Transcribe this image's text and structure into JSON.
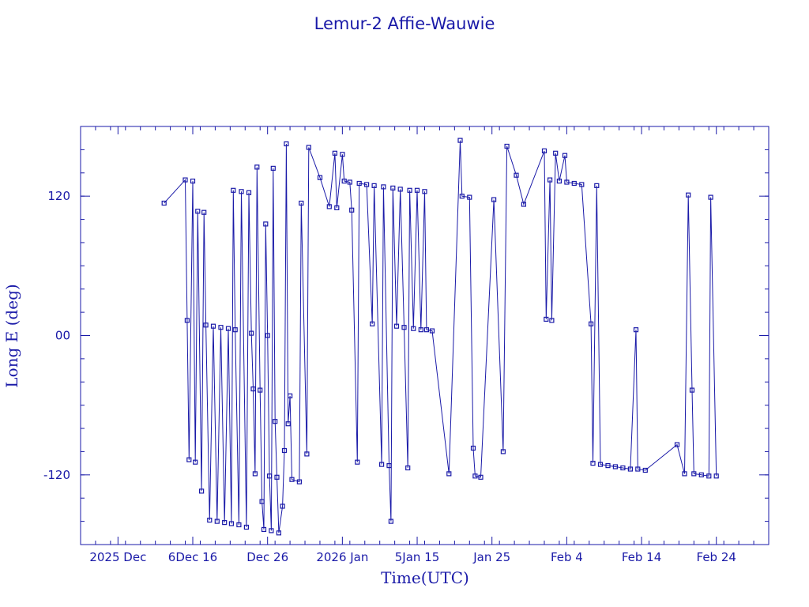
{
  "chart_data": {
    "type": "line",
    "title": "Lemur-2 Affie-Wauwie",
    "xlabel": "Time(UTC)",
    "ylabel": "Long E (deg)",
    "x_is_date": true,
    "xlim": [
      "2025-11-26",
      "2026-02-26"
    ],
    "ylim": [
      -180,
      180
    ],
    "x_tick_labels": [
      "2025 Dec",
      "6Dec 16",
      "Dec 26",
      "2026 Jan",
      "5Jan 15",
      "Jan 25",
      "Feb  4",
      "Feb 14",
      "Feb 24"
    ],
    "y_tick_labels": [
      "-120",
      "00",
      "120"
    ],
    "y_ticks": [
      -120,
      0,
      120
    ],
    "x_ticks": [
      "2025-12-01",
      "2025-12-11",
      "2025-12-21",
      "2025-12-31",
      "2026-01-10",
      "2026-01-20",
      "2026-01-30",
      "2026-02-09",
      "2026-02-19"
    ],
    "x_minor_tick_days": 2,
    "y_minor_tick_step": 20,
    "grid": false,
    "legend": "none",
    "color": "#1a1aa8",
    "marker": "square",
    "series": [
      {
        "points": [
          [
            "2025-12-07 04:00",
            114
          ],
          [
            "2025-12-10 00:00",
            134
          ],
          [
            "2025-12-10 06:00",
            13
          ],
          [
            "2025-12-10 12:00",
            -107
          ],
          [
            "2025-12-11 00:00",
            133
          ],
          [
            "2025-12-11 08:00",
            -109
          ],
          [
            "2025-12-11 16:00",
            107
          ],
          [
            "2025-12-12 04:00",
            -134
          ],
          [
            "2025-12-12 12:00",
            106
          ],
          [
            "2025-12-12 18:00",
            9
          ],
          [
            "2025-12-13 06:00",
            -159
          ],
          [
            "2025-12-13 18:00",
            8
          ],
          [
            "2025-12-14 06:00",
            -160
          ],
          [
            "2025-12-14 18:00",
            7
          ],
          [
            "2025-12-15 06:00",
            -161
          ],
          [
            "2025-12-15 18:00",
            6
          ],
          [
            "2025-12-16 04:00",
            -162
          ],
          [
            "2025-12-16 10:00",
            125
          ],
          [
            "2025-12-16 16:00",
            5
          ],
          [
            "2025-12-17 04:00",
            -163
          ],
          [
            "2025-12-17 12:00",
            124
          ],
          [
            "2025-12-18 04:00",
            -165
          ],
          [
            "2025-12-18 12:00",
            123
          ],
          [
            "2025-12-18 20:00",
            2
          ],
          [
            "2025-12-19 02:00",
            -46
          ],
          [
            "2025-12-19 08:00",
            -119
          ],
          [
            "2025-12-19 14:00",
            145
          ],
          [
            "2025-12-20 00:00",
            -47
          ],
          [
            "2025-12-20 06:00",
            -143
          ],
          [
            "2025-12-20 12:00",
            -167
          ],
          [
            "2025-12-20 18:00",
            96
          ],
          [
            "2025-12-21 00:00",
            0
          ],
          [
            "2025-12-21 06:00",
            -121
          ],
          [
            "2025-12-21 12:00",
            -168
          ],
          [
            "2025-12-21 18:00",
            144
          ],
          [
            "2025-12-22 00:00",
            -74
          ],
          [
            "2025-12-22 06:00",
            -122
          ],
          [
            "2025-12-22 12:00",
            -170
          ],
          [
            "2025-12-23 00:00",
            -147
          ],
          [
            "2025-12-23 06:00",
            -99
          ],
          [
            "2025-12-23 12:00",
            165
          ],
          [
            "2025-12-23 18:00",
            -76
          ],
          [
            "2025-12-24 00:00",
            -52
          ],
          [
            "2025-12-24 06:00",
            -124
          ],
          [
            "2025-12-25 06:00",
            -126
          ],
          [
            "2025-12-25 12:00",
            114
          ],
          [
            "2025-12-26 06:00",
            -102
          ],
          [
            "2025-12-26 12:00",
            162
          ],
          [
            "2025-12-28 00:00",
            136
          ],
          [
            "2025-12-29 06:00",
            111
          ],
          [
            "2025-12-30 00:00",
            157
          ],
          [
            "2025-12-30 06:00",
            110
          ],
          [
            "2025-12-31 00:00",
            156
          ],
          [
            "2025-12-31 06:00",
            133
          ],
          [
            "2026-01-01 00:00",
            132
          ],
          [
            "2026-01-01 06:00",
            108
          ],
          [
            "2026-01-02 00:00",
            -109
          ],
          [
            "2026-01-02 06:00",
            131
          ],
          [
            "2026-01-03 06:00",
            130
          ],
          [
            "2026-01-04 00:00",
            10
          ],
          [
            "2026-01-04 06:00",
            129
          ],
          [
            "2026-01-05 06:00",
            -111
          ],
          [
            "2026-01-05 12:00",
            128
          ],
          [
            "2026-01-06 06:00",
            -112
          ],
          [
            "2026-01-06 12:00",
            -160
          ],
          [
            "2026-01-06 18:00",
            127
          ],
          [
            "2026-01-07 06:00",
            8
          ],
          [
            "2026-01-07 18:00",
            126
          ],
          [
            "2026-01-08 06:00",
            7
          ],
          [
            "2026-01-08 18:00",
            -114
          ],
          [
            "2026-01-09 00:00",
            125
          ],
          [
            "2026-01-09 12:00",
            6
          ],
          [
            "2026-01-10 00:00",
            125
          ],
          [
            "2026-01-10 12:00",
            5
          ],
          [
            "2026-01-11 00:00",
            124
          ],
          [
            "2026-01-11 06:00",
            5
          ],
          [
            "2026-01-12 00:00",
            4
          ],
          [
            "2026-01-14 06:00",
            -119
          ],
          [
            "2026-01-15 18:00",
            168
          ],
          [
            "2026-01-16 00:00",
            120
          ],
          [
            "2026-01-17 00:00",
            119
          ],
          [
            "2026-01-17 12:00",
            -97
          ],
          [
            "2026-01-17 18:00",
            -121
          ],
          [
            "2026-01-18 12:00",
            -122
          ],
          [
            "2026-01-20 06:00",
            117
          ],
          [
            "2026-01-21 12:00",
            -100
          ],
          [
            "2026-01-22 00:00",
            163
          ],
          [
            "2026-01-23 06:00",
            138
          ],
          [
            "2026-01-24 06:00",
            113
          ],
          [
            "2026-01-27 00:00",
            159
          ],
          [
            "2026-01-27 06:00",
            14
          ],
          [
            "2026-01-27 18:00",
            134
          ],
          [
            "2026-01-28 00:00",
            13
          ],
          [
            "2026-01-28 12:00",
            157
          ],
          [
            "2026-01-29 00:00",
            133
          ],
          [
            "2026-01-29 18:00",
            155
          ],
          [
            "2026-01-30 00:00",
            132
          ],
          [
            "2026-01-31 00:00",
            131
          ],
          [
            "2026-02-01 00:00",
            130
          ],
          [
            "2026-02-02 06:00",
            10
          ],
          [
            "2026-02-02 12:00",
            -110
          ],
          [
            "2026-02-03 00:00",
            129
          ],
          [
            "2026-02-03 12:00",
            -111
          ],
          [
            "2026-02-04 12:00",
            -112
          ],
          [
            "2026-02-05 12:00",
            -113
          ],
          [
            "2026-02-06 12:00",
            -114
          ],
          [
            "2026-02-07 12:00",
            -115
          ],
          [
            "2026-02-08 06:00",
            5
          ],
          [
            "2026-02-08 12:00",
            -115
          ],
          [
            "2026-02-09 12:00",
            -116
          ],
          [
            "2026-02-13 18:00",
            -94
          ],
          [
            "2026-02-14 18:00",
            -119
          ],
          [
            "2026-02-15 06:00",
            121
          ],
          [
            "2026-02-15 18:00",
            -47
          ],
          [
            "2026-02-16 00:00",
            -119
          ],
          [
            "2026-02-17 00:00",
            -120
          ],
          [
            "2026-02-18 00:00",
            -121
          ],
          [
            "2026-02-18 06:00",
            119
          ],
          [
            "2026-02-19 00:00",
            -121
          ]
        ]
      }
    ]
  }
}
